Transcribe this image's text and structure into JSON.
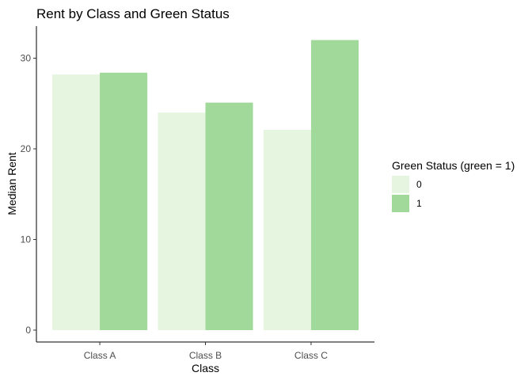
{
  "chart_data": {
    "type": "bar",
    "title": "Rent by Class and Green Status",
    "xlabel": "Class",
    "ylabel": "Median Rent",
    "categories": [
      "Class A",
      "Class B",
      "Class C"
    ],
    "series": [
      {
        "name": "0",
        "values": [
          28.2,
          24.0,
          22.1
        ],
        "color": "#e5f5e0"
      },
      {
        "name": "1",
        "values": [
          28.4,
          25.1,
          32.0
        ],
        "color": "#a1d99b"
      }
    ],
    "ylim": [
      0,
      33.6
    ],
    "yticks": [
      0,
      10,
      20,
      30
    ],
    "grid": false,
    "legend": {
      "title": "Green Status (green = 1)",
      "position": "right"
    }
  }
}
